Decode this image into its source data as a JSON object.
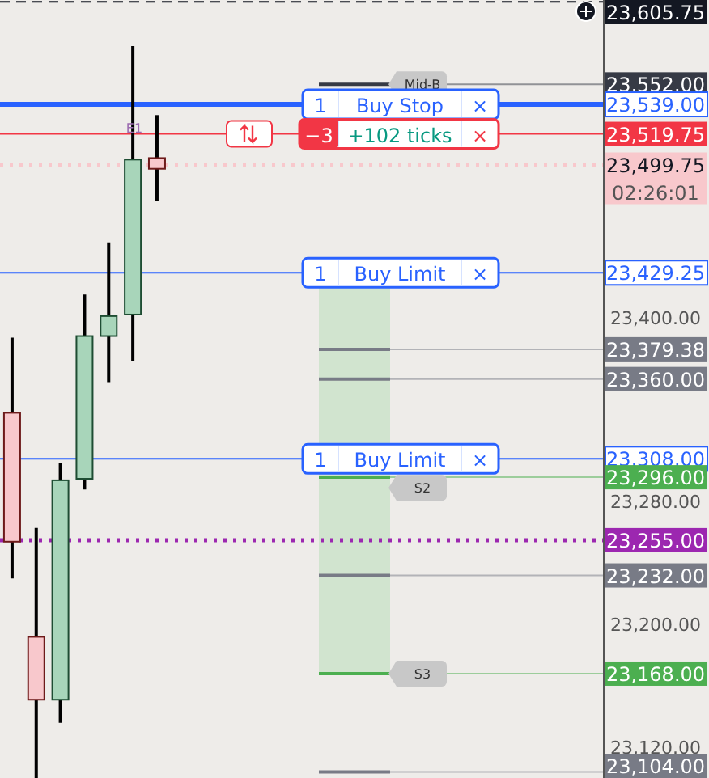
{
  "chart_data": {
    "type": "candlestick",
    "categories": [
      null,
      null,
      null,
      null,
      null,
      null,
      null,
      null,
      null,
      null,
      null,
      null,
      null,
      null,
      null,
      null,
      null,
      null,
      null,
      null,
      null,
      null,
      null,
      null,
      null
    ],
    "ohlc": [
      [
        23338,
        23387,
        23230,
        23254
      ],
      [
        23192,
        23263,
        23100,
        23151
      ],
      [
        23151,
        23305,
        23136,
        23294
      ],
      [
        23295,
        23415,
        23288,
        23388
      ],
      [
        23388,
        23449,
        23358,
        23401
      ],
      [
        23402,
        23577,
        23372,
        23503
      ],
      [
        23504,
        23532,
        23476,
        23497
      ],
      null,
      null,
      null,
      null,
      null,
      null,
      null,
      null,
      null,
      null,
      null,
      null,
      null,
      null,
      null,
      null,
      null,
      null
    ],
    "ylim": [
      23100,
      23607
    ],
    "yticks": [
      {
        "value": 23120,
        "label": "23,120.00"
      },
      {
        "value": 23200,
        "label": "23,200.00"
      },
      {
        "value": 23280,
        "label": "23,280.00"
      },
      {
        "value": 23400,
        "label": "23,400.00"
      }
    ],
    "ref_lines": [
      {
        "axis": "y",
        "value": 23605.75,
        "label": "23,605.75",
        "color": "#131722",
        "line_style": "dashed"
      },
      {
        "axis": "y",
        "value": 23552,
        "label": "23,552.00",
        "color": "#363a45"
      },
      {
        "axis": "y",
        "value": 23539,
        "label": "23,539.00",
        "color": "#2962ff",
        "line_style": "solid"
      },
      {
        "axis": "y",
        "value": 23519.75,
        "label": "23,519.75",
        "color": "#f23645",
        "line_style": "solid"
      },
      {
        "axis": "y",
        "value": 23499.75,
        "label": "23,499.75",
        "color": "#f8c8cc",
        "line_style": "dotted"
      },
      {
        "axis": "y",
        "value": 23429.25,
        "label": "23,429.25",
        "color": "#2962ff",
        "line_style": "solid"
      },
      {
        "axis": "y",
        "value": 23379.38,
        "label": "23,379.38",
        "color": "#787b86"
      },
      {
        "axis": "y",
        "value": 23360,
        "label": "23,360.00",
        "color": "#787b86"
      },
      {
        "axis": "y",
        "value": 23308,
        "label": "23,308.00",
        "color": "#2962ff",
        "line_style": "solid"
      },
      {
        "axis": "y",
        "value": 23296,
        "label": "23,296.00",
        "color": "#4caf50"
      },
      {
        "axis": "y",
        "value": 23255,
        "label": "23,255.00",
        "color": "#9c27b0",
        "line_style": "dotted"
      },
      {
        "axis": "y",
        "value": 23232,
        "label": "23,232.00",
        "color": "#787b86"
      },
      {
        "axis": "y",
        "value": 23168,
        "label": "23,168.00",
        "color": "#4caf50"
      },
      {
        "axis": "y",
        "value": 23104,
        "label": "23,104.00",
        "color": "#787b86"
      }
    ],
    "bands": [
      {
        "axis": "y",
        "from": 23168,
        "to": 23420,
        "color": "#d1e4cf"
      }
    ],
    "annotations": [
      {
        "text": "1",
        "y": 23539
      },
      {
        "text": "Buy Stop",
        "y": 23539
      },
      {
        "text": "×",
        "y": 23539
      },
      {
        "text": "−3",
        "y": 23519.75
      },
      {
        "text": "+102 ticks",
        "y": 23519.75
      },
      {
        "text": "×",
        "y": 23519.75
      },
      "02:26:01",
      "Mid-B",
      {
        "text": "1",
        "y": 23429.25
      },
      {
        "text": "Buy Limit",
        "y": 23429.25
      },
      {
        "text": "×",
        "y": 23429.25
      },
      {
        "text": "1",
        "y": 23308
      },
      {
        "text": "Buy Limit",
        "y": 23308
      },
      {
        "text": "×",
        "y": 23308
      },
      "S2",
      "S3",
      "E1"
    ]
  }
}
